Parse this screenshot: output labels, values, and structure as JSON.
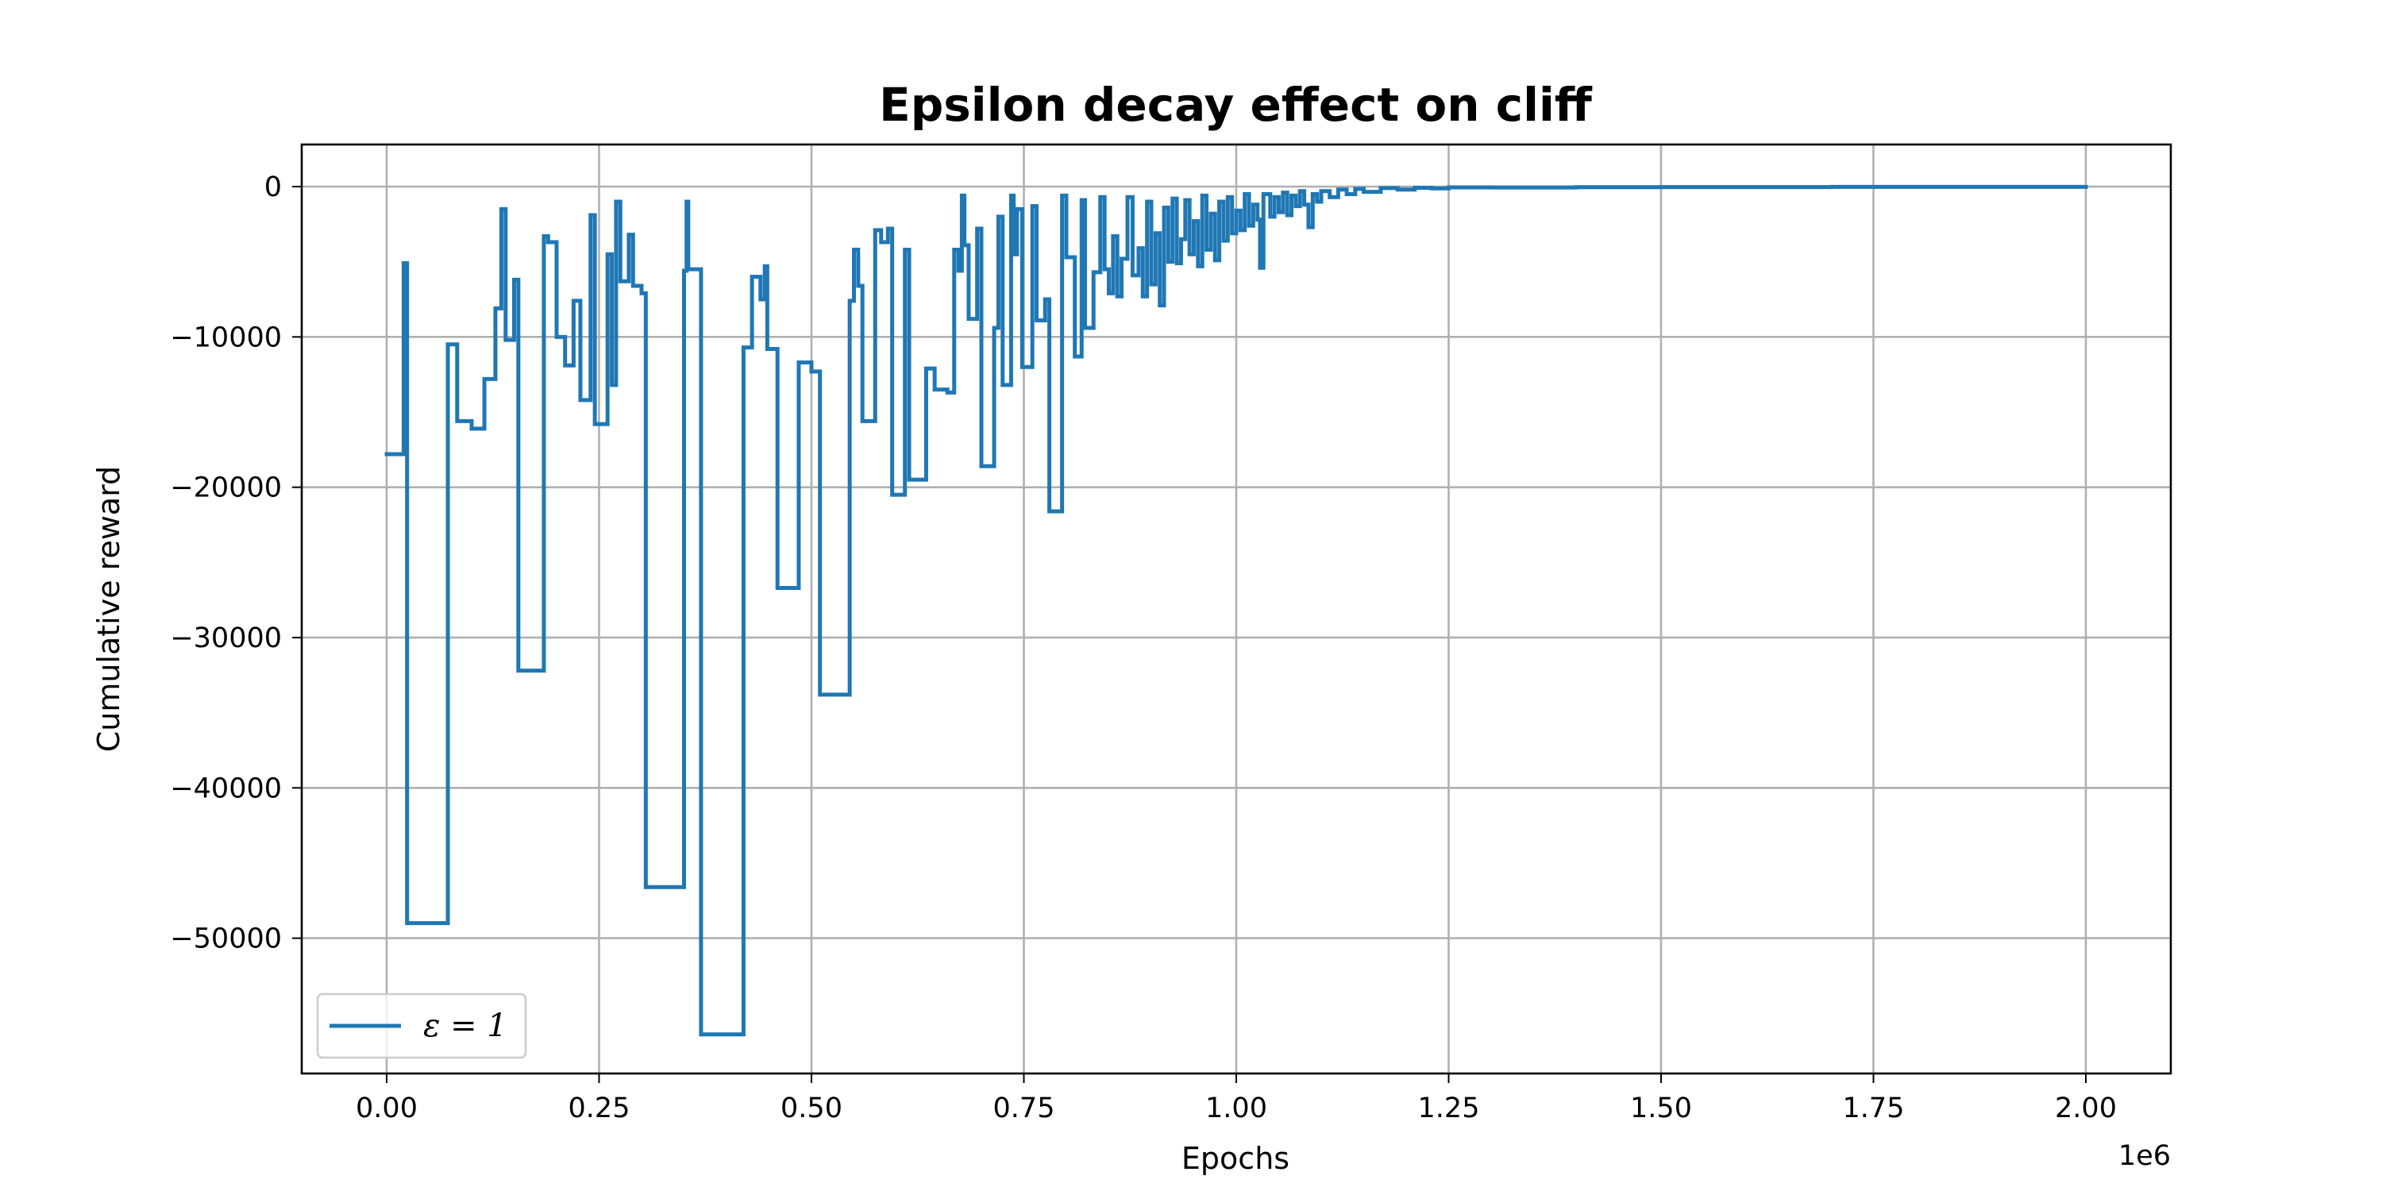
{
  "chart_data": {
    "type": "line",
    "title": "Epsilon decay effect on cliff",
    "xlabel": "Epochs",
    "ylabel": "Cumulative reward",
    "x_offset_label": "1e6",
    "xlim": [
      -0.1,
      2.1
    ],
    "ylim": [
      -59000,
      2800
    ],
    "x_ticks": [
      0.0,
      0.25,
      0.5,
      0.75,
      1.0,
      1.25,
      1.5,
      1.75,
      2.0
    ],
    "x_tick_labels": [
      "0.00",
      "0.25",
      "0.50",
      "0.75",
      "1.00",
      "1.25",
      "1.50",
      "1.75",
      "2.00"
    ],
    "y_ticks": [
      0,
      -10000,
      -20000,
      -30000,
      -40000,
      -50000
    ],
    "y_tick_labels": [
      "0",
      "−10000",
      "−20000",
      "−30000",
      "−40000",
      "−50000"
    ],
    "grid": true,
    "legend_position": "lower-left",
    "series": [
      {
        "name": "ε = 1",
        "color": "#1f77b4",
        "line_style": "step",
        "points": [
          [
            0.0,
            -17800
          ],
          [
            0.02,
            -5100
          ],
          [
            0.024,
            -49000
          ],
          [
            0.072,
            -10500
          ],
          [
            0.083,
            -15600
          ],
          [
            0.1,
            -16100
          ],
          [
            0.115,
            -12800
          ],
          [
            0.128,
            -8100
          ],
          [
            0.135,
            -1500
          ],
          [
            0.14,
            -10200
          ],
          [
            0.15,
            -6200
          ],
          [
            0.155,
            -32200
          ],
          [
            0.185,
            -3300
          ],
          [
            0.19,
            -3700
          ],
          [
            0.2,
            -10000
          ],
          [
            0.21,
            -11900
          ],
          [
            0.22,
            -7600
          ],
          [
            0.228,
            -14200
          ],
          [
            0.24,
            -1900
          ],
          [
            0.245,
            -15800
          ],
          [
            0.26,
            -4500
          ],
          [
            0.265,
            -13200
          ],
          [
            0.27,
            -1000
          ],
          [
            0.275,
            -6300
          ],
          [
            0.285,
            -3200
          ],
          [
            0.29,
            -6600
          ],
          [
            0.3,
            -7100
          ],
          [
            0.305,
            -46600
          ],
          [
            0.35,
            -5600
          ],
          [
            0.353,
            -1000
          ],
          [
            0.355,
            -5500
          ],
          [
            0.37,
            -56400
          ],
          [
            0.42,
            -10700
          ],
          [
            0.43,
            -6000
          ],
          [
            0.44,
            -7500
          ],
          [
            0.445,
            -5300
          ],
          [
            0.448,
            -10800
          ],
          [
            0.46,
            -26700
          ],
          [
            0.485,
            -11700
          ],
          [
            0.5,
            -12300
          ],
          [
            0.51,
            -33800
          ],
          [
            0.545,
            -7600
          ],
          [
            0.55,
            -4200
          ],
          [
            0.555,
            -6600
          ],
          [
            0.56,
            -15600
          ],
          [
            0.575,
            -2900
          ],
          [
            0.582,
            -3700
          ],
          [
            0.59,
            -2800
          ],
          [
            0.595,
            -20500
          ],
          [
            0.61,
            -4200
          ],
          [
            0.615,
            -19500
          ],
          [
            0.635,
            -12100
          ],
          [
            0.645,
            -13500
          ],
          [
            0.66,
            -13700
          ],
          [
            0.668,
            -4200
          ],
          [
            0.673,
            -5600
          ],
          [
            0.677,
            -600
          ],
          [
            0.68,
            -3900
          ],
          [
            0.685,
            -8800
          ],
          [
            0.695,
            -2800
          ],
          [
            0.7,
            -18600
          ],
          [
            0.715,
            -9400
          ],
          [
            0.72,
            -2000
          ],
          [
            0.725,
            -13200
          ],
          [
            0.735,
            -600
          ],
          [
            0.738,
            -4500
          ],
          [
            0.742,
            -1500
          ],
          [
            0.748,
            -12000
          ],
          [
            0.76,
            -1300
          ],
          [
            0.765,
            -8900
          ],
          [
            0.775,
            -7500
          ],
          [
            0.78,
            -21600
          ],
          [
            0.795,
            -600
          ],
          [
            0.8,
            -4700
          ],
          [
            0.81,
            -11300
          ],
          [
            0.818,
            -900
          ],
          [
            0.822,
            -9400
          ],
          [
            0.832,
            -5700
          ],
          [
            0.84,
            -700
          ],
          [
            0.845,
            -5500
          ],
          [
            0.85,
            -7100
          ],
          [
            0.855,
            -3300
          ],
          [
            0.86,
            -7300
          ],
          [
            0.865,
            -4800
          ],
          [
            0.872,
            -700
          ],
          [
            0.878,
            -5900
          ],
          [
            0.885,
            -4100
          ],
          [
            0.89,
            -7300
          ],
          [
            0.895,
            -1000
          ],
          [
            0.9,
            -6500
          ],
          [
            0.905,
            -3100
          ],
          [
            0.91,
            -7900
          ],
          [
            0.915,
            -1400
          ],
          [
            0.92,
            -5000
          ],
          [
            0.925,
            -800
          ],
          [
            0.93,
            -5100
          ],
          [
            0.935,
            -3500
          ],
          [
            0.94,
            -900
          ],
          [
            0.945,
            -4500
          ],
          [
            0.95,
            -2300
          ],
          [
            0.955,
            -5300
          ],
          [
            0.96,
            -600
          ],
          [
            0.965,
            -4200
          ],
          [
            0.97,
            -1800
          ],
          [
            0.975,
            -4900
          ],
          [
            0.98,
            -1000
          ],
          [
            0.985,
            -3600
          ],
          [
            0.99,
            -700
          ],
          [
            0.995,
            -3100
          ],
          [
            1.0,
            -1600
          ],
          [
            1.005,
            -2900
          ],
          [
            1.01,
            -500
          ],
          [
            1.015,
            -2600
          ],
          [
            1.02,
            -1200
          ],
          [
            1.025,
            -2200
          ],
          [
            1.028,
            -5400
          ],
          [
            1.032,
            -500
          ],
          [
            1.04,
            -2000
          ],
          [
            1.045,
            -700
          ],
          [
            1.05,
            -1700
          ],
          [
            1.055,
            -400
          ],
          [
            1.06,
            -1900
          ],
          [
            1.065,
            -600
          ],
          [
            1.07,
            -1300
          ],
          [
            1.075,
            -300
          ],
          [
            1.08,
            -1200
          ],
          [
            1.085,
            -2700
          ],
          [
            1.09,
            -500
          ],
          [
            1.095,
            -1000
          ],
          [
            1.1,
            -300
          ],
          [
            1.11,
            -700
          ],
          [
            1.12,
            -200
          ],
          [
            1.13,
            -500
          ],
          [
            1.14,
            -150
          ],
          [
            1.15,
            -350
          ],
          [
            1.17,
            -100
          ],
          [
            1.19,
            -200
          ],
          [
            1.21,
            -80
          ],
          [
            1.23,
            -120
          ],
          [
            1.25,
            -50
          ],
          [
            1.3,
            -60
          ],
          [
            1.4,
            -40
          ],
          [
            1.5,
            -30
          ],
          [
            1.6,
            -30
          ],
          [
            1.7,
            -20
          ],
          [
            1.8,
            -20
          ],
          [
            1.9,
            -20
          ],
          [
            2.0,
            -20
          ]
        ]
      }
    ]
  }
}
